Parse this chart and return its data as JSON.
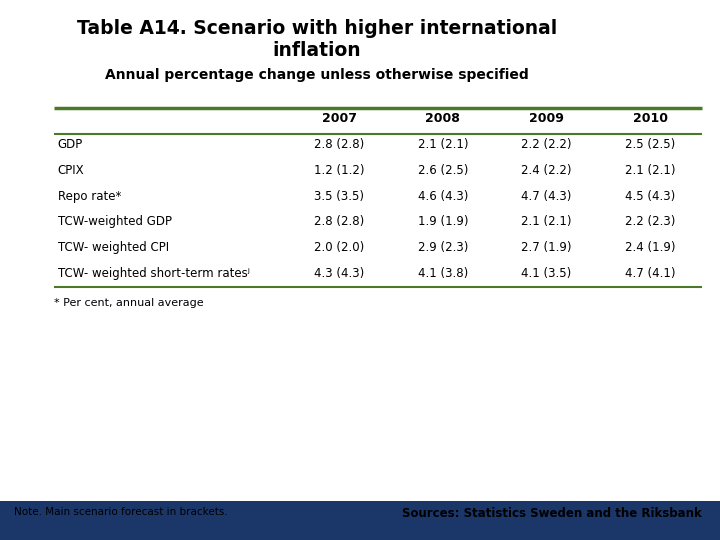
{
  "title_line1": "Table A14. Scenario with higher international",
  "title_line2": "inflation",
  "subtitle": "Annual percentage change unless otherwise specified",
  "columns": [
    "",
    "2007",
    "2008",
    "2009",
    "2010"
  ],
  "rows": [
    [
      "GDP",
      "2.8 (2.8)",
      "2.1 (2.1)",
      "2.2 (2.2)",
      "2.5 (2.5)"
    ],
    [
      "CPIX",
      "1.2 (1.2)",
      "2.6 (2.5)",
      "2.4 (2.2)",
      "2.1 (2.1)"
    ],
    [
      "Repo rate*",
      "3.5 (3.5)",
      "4.6 (4.3)",
      "4.7 (4.3)",
      "4.5 (4.3)"
    ],
    [
      "TCW-weighted GDP",
      "2.8 (2.8)",
      "1.9 (1.9)",
      "2.1 (2.1)",
      "2.2 (2.3)"
    ],
    [
      "TCW- weighted CPI",
      "2.0 (2.0)",
      "2.9 (2.3)",
      "2.7 (1.9)",
      "2.4 (1.9)"
    ],
    [
      "TCW- weighted short-term ratesʲ",
      "4.3 (4.3)",
      "4.1 (3.8)",
      "4.1 (3.5)",
      "4.7 (4.1)"
    ]
  ],
  "footnote": "* Per cent, annual average",
  "note_left": "Note. Main scenario forecast in brackets.",
  "note_right": "Sources: Statistics Sweden and the Riksbank",
  "green_color": "#4a7a28",
  "navy_color": "#1b3668",
  "bg_color": "#ffffff"
}
